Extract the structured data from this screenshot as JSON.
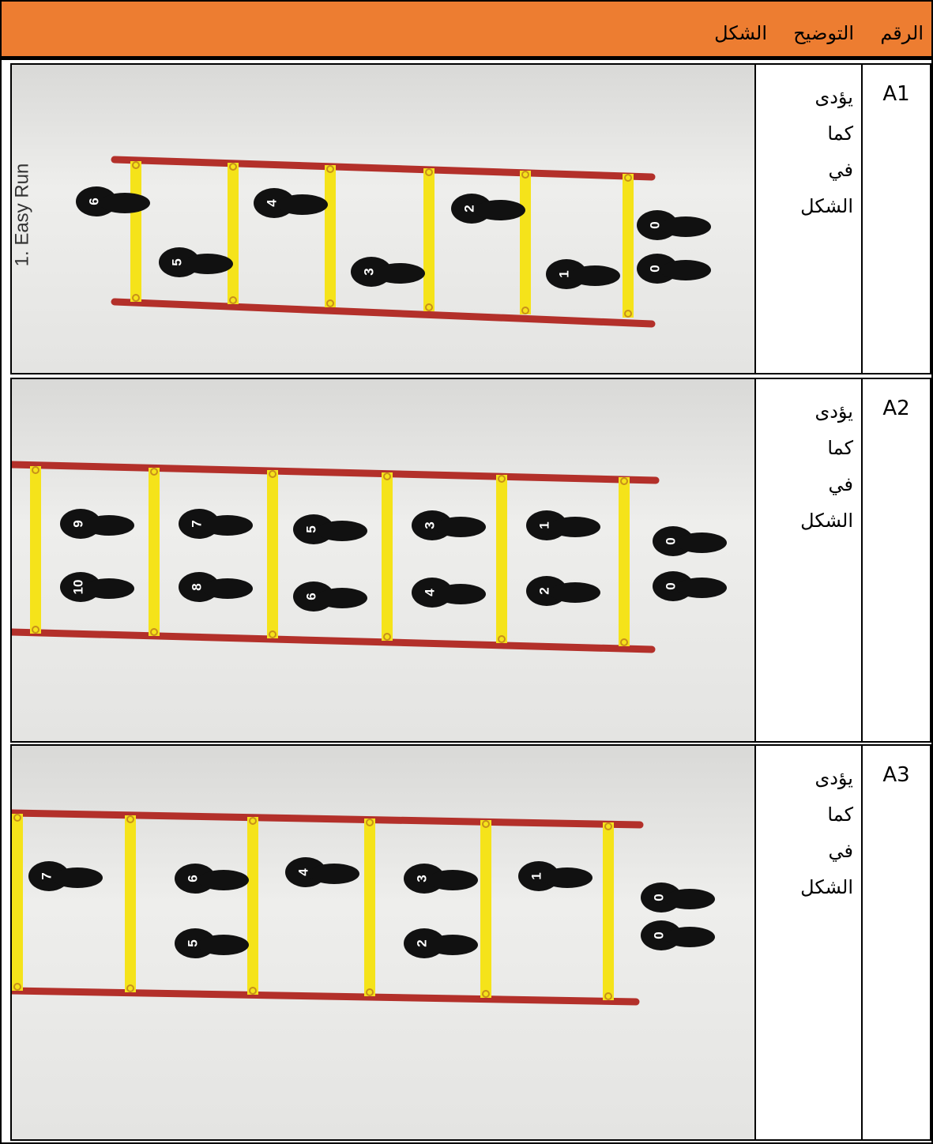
{
  "header": {
    "number": "الرقم",
    "description": "التوضيح",
    "figure": "الشكل"
  },
  "rows": [
    {
      "number": "A1",
      "description": "يؤدى كما في الشكل",
      "figure": {
        "caption": "1. Easy Run",
        "steps": [
          "0",
          "0",
          "1",
          "2",
          "3",
          "4",
          "5",
          "6"
        ]
      }
    },
    {
      "number": "A2",
      "description": "يؤدى كما في الشكل",
      "figure": {
        "steps": [
          "0",
          "0",
          "1",
          "2",
          "3",
          "4",
          "5",
          "6",
          "7",
          "8",
          "9",
          "10"
        ]
      }
    },
    {
      "number": "A3",
      "description": "يؤدى كما في الشكل",
      "figure": {
        "steps": [
          "0",
          "0",
          "1",
          "2",
          "3",
          "4",
          "5",
          "6",
          "7"
        ]
      }
    }
  ]
}
